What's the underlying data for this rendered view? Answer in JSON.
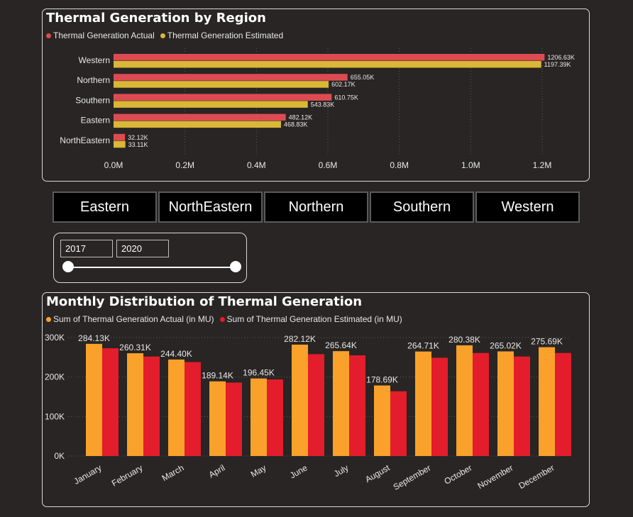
{
  "colors": {
    "background": "#282524",
    "actual_red": "#dd4b52",
    "estimated_yellow": "#d9b737",
    "actual_orange": "#f9a12a",
    "estimated_red": "#e31d2b"
  },
  "top_panel": {
    "title": "Thermal Generation by Region",
    "legend": [
      "Thermal Generation Actual",
      "Thermal Generation Estimated"
    ]
  },
  "region_buttons": [
    "Eastern",
    "NorthEastern",
    "Northern",
    "Southern",
    "Western"
  ],
  "date_range": {
    "start": "2017",
    "end": "2020"
  },
  "bottom_panel": {
    "title": "Monthly Distribution of Thermal Generation",
    "legend": [
      "Sum of Thermal Generation Actual (in MU)",
      "Sum of Thermal Generation Estimated (in MU)"
    ]
  },
  "chart_data": [
    {
      "type": "bar",
      "orientation": "horizontal",
      "title": "Thermal Generation by Region",
      "categories": [
        "Western",
        "Northern",
        "Southern",
        "Eastern",
        "NorthEastern"
      ],
      "series": [
        {
          "name": "Thermal Generation Actual",
          "color": "#dd4b52",
          "values": [
            1206630,
            655050,
            610750,
            482120,
            32120
          ],
          "labels": [
            "1206.63K",
            "655.05K",
            "610.75K",
            "482.12K",
            "32.12K"
          ]
        },
        {
          "name": "Thermal Generation Estimated",
          "color": "#d9b737",
          "values": [
            1197390,
            602170,
            543830,
            468830,
            33110
          ],
          "labels": [
            "1197.39K",
            "602.17K",
            "543.83K",
            "468.83K",
            "33.11K"
          ]
        }
      ],
      "xlim": [
        0,
        1300000
      ],
      "xticks": [
        0,
        200000,
        400000,
        600000,
        800000,
        1000000,
        1200000
      ],
      "xtick_labels": [
        "0.0M",
        "0.2M",
        "0.4M",
        "0.6M",
        "0.8M",
        "1.0M",
        "1.2M"
      ],
      "grid": true
    },
    {
      "type": "bar",
      "orientation": "vertical",
      "title": "Monthly Distribution of Thermal Generation",
      "categories": [
        "January",
        "February",
        "March",
        "April",
        "May",
        "June",
        "July",
        "August",
        "September",
        "October",
        "November",
        "December"
      ],
      "series": [
        {
          "name": "Sum of Thermal Generation Actual (in MU)",
          "color": "#f9a12a",
          "values": [
            284130,
            260310,
            244400,
            189140,
            196450,
            282120,
            265640,
            178690,
            264710,
            280380,
            265020,
            275690
          ],
          "labels": [
            "284.13K",
            "260.31K",
            "244.40K",
            "189.14K",
            "196.45K",
            "282.12K",
            "265.64K",
            "178.69K",
            "264.71K",
            "280.38K",
            "265.02K",
            "275.69K"
          ]
        },
        {
          "name": "Sum of Thermal Generation Estimated (in MU)",
          "color": "#e31d2b",
          "values": [
            273000,
            252000,
            238000,
            186000,
            194000,
            258000,
            255000,
            164000,
            249000,
            261000,
            252000,
            261000
          ]
        }
      ],
      "ylim": [
        0,
        300000
      ],
      "yticks": [
        0,
        100000,
        200000,
        300000
      ],
      "ytick_labels": [
        "0K",
        "100K",
        "200K",
        "300K"
      ],
      "grid": true
    }
  ]
}
